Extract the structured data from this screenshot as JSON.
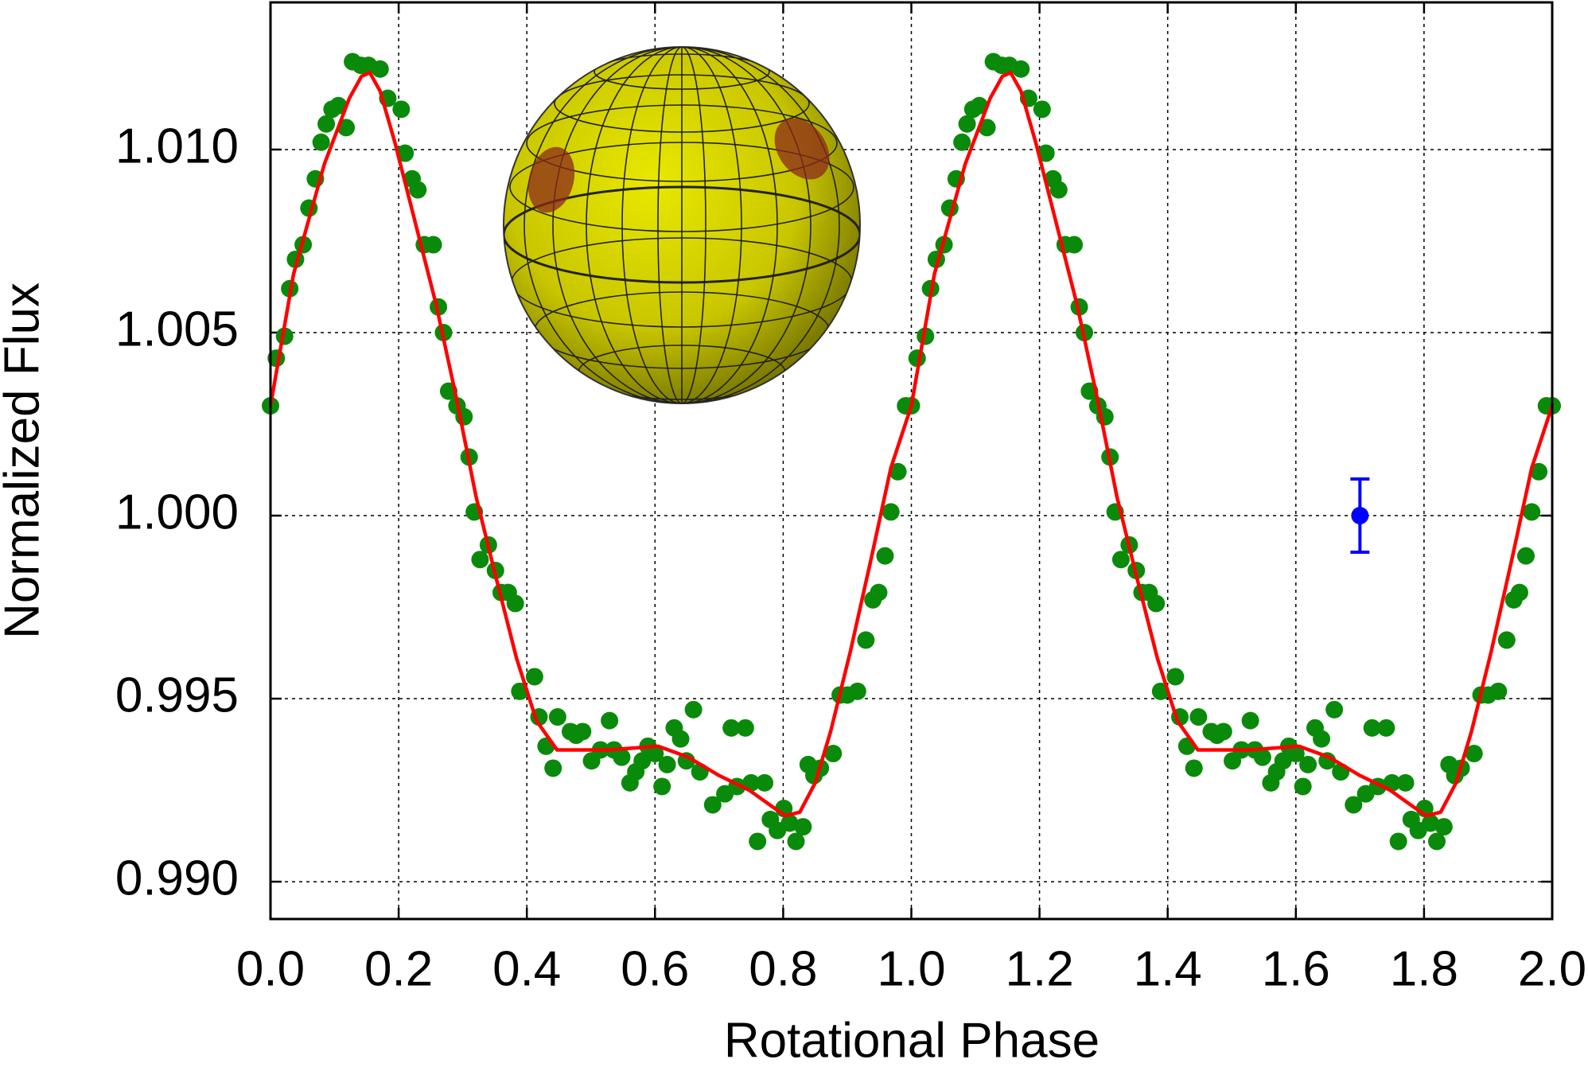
{
  "chart_data": {
    "type": "scatter",
    "xlabel": "Rotational Phase",
    "ylabel": "Normalized Flux",
    "xlim": [
      0,
      2
    ],
    "ylim": [
      0.98898,
      1.01402
    ],
    "xticks": [
      {
        "value": 0,
        "label": "0.0"
      },
      0.2,
      0.4,
      0.6,
      0.8,
      {
        "value": 1,
        "label": "1.0"
      },
      1.2,
      1.4,
      1.6,
      1.8,
      {
        "value": 2,
        "label": "2.0"
      }
    ],
    "yticks": [
      {
        "value": 0.99,
        "label": "0.990"
      },
      0.995,
      {
        "value": 1,
        "label": "1.000"
      },
      1.005,
      {
        "value": 1.01,
        "label": "1.010"
      }
    ],
    "grid": true,
    "series": [
      {
        "type": "scatter",
        "color": "#0a8a0a",
        "x": [
          0,
          0.009,
          0.022,
          0.03,
          0.039,
          0.051,
          0.06,
          0.07,
          0.079,
          0.087,
          0.096,
          0.106,
          0.118,
          0.128,
          0.141,
          0.153,
          0.171,
          0.183,
          0.204,
          0.21,
          0.221,
          0.23,
          0.24,
          0.254,
          0.262,
          0.27,
          0.278,
          0.291,
          0.302,
          0.31,
          0.318,
          0.327,
          0.34,
          0.351,
          0.36,
          0.371,
          0.382,
          0.389,
          0.412,
          0.419,
          0.43,
          0.441,
          0.448,
          0.468,
          0.477,
          0.487,
          0.501,
          0.515,
          0.529,
          0.536,
          0.548,
          0.561,
          0.57,
          0.58,
          0.589,
          0.6,
          0.611,
          0.619,
          0.63,
          0.64,
          0.649,
          0.66,
          0.67,
          0.69,
          0.709,
          0.719,
          0.728,
          0.741,
          0.75,
          0.76,
          0.771,
          0.78,
          0.791,
          0.801,
          0.81,
          0.82,
          0.831,
          0.839,
          0.848,
          0.858,
          0.878,
          0.889,
          0.9,
          0.916,
          0.929,
          0.94,
          0.949,
          0.959,
          0.968,
          0.979,
          0.991,
          1,
          1.009,
          1.022,
          1.03,
          1.039,
          1.051,
          1.06,
          1.07,
          1.079,
          1.087,
          1.096,
          1.106,
          1.118,
          1.128,
          1.141,
          1.153,
          1.171,
          1.183,
          1.204,
          1.21,
          1.221,
          1.23,
          1.24,
          1.254,
          1.262,
          1.27,
          1.278,
          1.291,
          1.302,
          1.31,
          1.318,
          1.327,
          1.34,
          1.351,
          1.36,
          1.371,
          1.382,
          1.389,
          1.412,
          1.419,
          1.43,
          1.441,
          1.448,
          1.468,
          1.477,
          1.487,
          1.501,
          1.515,
          1.529,
          1.536,
          1.548,
          1.561,
          1.57,
          1.58,
          1.589,
          1.6,
          1.611,
          1.619,
          1.63,
          1.64,
          1.649,
          1.66,
          1.67,
          1.69,
          1.709,
          1.719,
          1.728,
          1.741,
          1.75,
          1.76,
          1.771,
          1.78,
          1.791,
          1.801,
          1.81,
          1.82,
          1.831,
          1.839,
          1.848,
          1.858,
          1.878,
          1.889,
          1.9,
          1.916,
          1.929,
          1.94,
          1.949,
          1.959,
          1.968,
          1.979,
          1.991,
          2
        ],
        "values": [
          1.003,
          1.0043,
          1.0049,
          1.0062,
          1.007,
          1.0074,
          1.0084,
          1.0092,
          1.0102,
          1.0107,
          1.0111,
          1.0112,
          1.0106,
          1.0124,
          1.0123,
          1.0123,
          1.0122,
          1.0114,
          1.0111,
          1.0099,
          1.0092,
          1.0089,
          1.0074,
          1.0074,
          1.0057,
          1.005,
          1.0034,
          1.003,
          1.0027,
          1.0016,
          1.0001,
          0.9988,
          0.9992,
          0.9985,
          0.9979,
          0.9979,
          0.9976,
          0.9952,
          0.9956,
          0.9945,
          0.9937,
          0.9931,
          0.9945,
          0.9941,
          0.994,
          0.9941,
          0.9933,
          0.9936,
          0.9944,
          0.9936,
          0.9934,
          0.9927,
          0.993,
          0.9933,
          0.9937,
          0.9935,
          0.9926,
          0.9932,
          0.9942,
          0.9939,
          0.9933,
          0.9947,
          0.993,
          0.9921,
          0.9924,
          0.9942,
          0.9926,
          0.9942,
          0.9927,
          0.9911,
          0.9927,
          0.9917,
          0.9914,
          0.992,
          0.9916,
          0.9911,
          0.9915,
          0.9932,
          0.9929,
          0.9931,
          0.9935,
          0.9951,
          0.9951,
          0.9952,
          0.9966,
          0.9977,
          0.9979,
          0.9989,
          1.0001,
          1.0012,
          1.003,
          1.003,
          1.0043,
          1.0049,
          1.0062,
          1.007,
          1.0074,
          1.0084,
          1.0092,
          1.0102,
          1.0107,
          1.0111,
          1.0112,
          1.0106,
          1.0124,
          1.0123,
          1.0123,
          1.0122,
          1.0114,
          1.0111,
          1.0099,
          1.0092,
          1.0089,
          1.0074,
          1.0074,
          1.0057,
          1.005,
          1.0034,
          1.003,
          1.0027,
          1.0016,
          1.0001,
          0.9988,
          0.9992,
          0.9985,
          0.9979,
          0.9979,
          0.9976,
          0.9952,
          0.9956,
          0.9945,
          0.9937,
          0.9931,
          0.9945,
          0.9941,
          0.994,
          0.9941,
          0.9933,
          0.9936,
          0.9944,
          0.9936,
          0.9934,
          0.9927,
          0.993,
          0.9933,
          0.9937,
          0.9935,
          0.9926,
          0.9932,
          0.9942,
          0.9939,
          0.9933,
          0.9947,
          0.993,
          0.9921,
          0.9924,
          0.9942,
          0.9926,
          0.9942,
          0.9927,
          0.9911,
          0.9927,
          0.9917,
          0.9914,
          0.992,
          0.9916,
          0.9911,
          0.9915,
          0.9932,
          0.9929,
          0.9931,
          0.9935,
          0.9951,
          0.9951,
          0.9952,
          0.9966,
          0.9977,
          0.9979,
          0.9989,
          1.0001,
          1.0012,
          1.003,
          1.003
        ]
      },
      {
        "type": "line",
        "color": "#ff0000",
        "x": [
          0,
          0.036,
          0.084,
          0.123,
          0.142,
          0.155,
          0.171,
          0.194,
          0.226,
          0.258,
          0.289,
          0.321,
          0.352,
          0.384,
          0.415,
          0.447,
          0.526,
          0.605,
          0.652,
          0.7,
          0.747,
          0.779,
          0.803,
          0.826,
          0.85,
          0.874,
          0.905,
          0.937,
          0.968,
          1,
          1.036,
          1.084,
          1.123,
          1.142,
          1.155,
          1.171,
          1.194,
          1.226,
          1.258,
          1.289,
          1.321,
          1.352,
          1.384,
          1.415,
          1.447,
          1.526,
          1.605,
          1.652,
          1.7,
          1.747,
          1.779,
          1.803,
          1.826,
          1.85,
          1.874,
          1.905,
          1.937,
          1.968,
          2
        ],
        "values": [
          1.003,
          1.0066,
          1.0096,
          1.0114,
          1.012,
          1.0121,
          1.0116,
          1.0102,
          1.008,
          1.0058,
          1.0033,
          1.0005,
          0.9983,
          0.9961,
          0.9944,
          0.9936,
          0.9936,
          0.9937,
          0.9934,
          0.9929,
          0.9925,
          0.9921,
          0.9918,
          0.9919,
          0.9927,
          0.9941,
          0.9963,
          0.9988,
          1.0013,
          1.003,
          1.0066,
          1.0096,
          1.0114,
          1.012,
          1.0121,
          1.0116,
          1.0102,
          1.008,
          1.0058,
          1.0033,
          1.0005,
          0.9983,
          0.9961,
          0.9944,
          0.9936,
          0.9936,
          0.9937,
          0.9934,
          0.9929,
          0.9925,
          0.9921,
          0.9918,
          0.9919,
          0.9927,
          0.9941,
          0.9963,
          0.9988,
          1.0013,
          1.003
        ]
      }
    ],
    "errorbar": {
      "x": 1.7,
      "y": 1.0,
      "error": 0.001,
      "color": "#0000ff"
    }
  }
}
